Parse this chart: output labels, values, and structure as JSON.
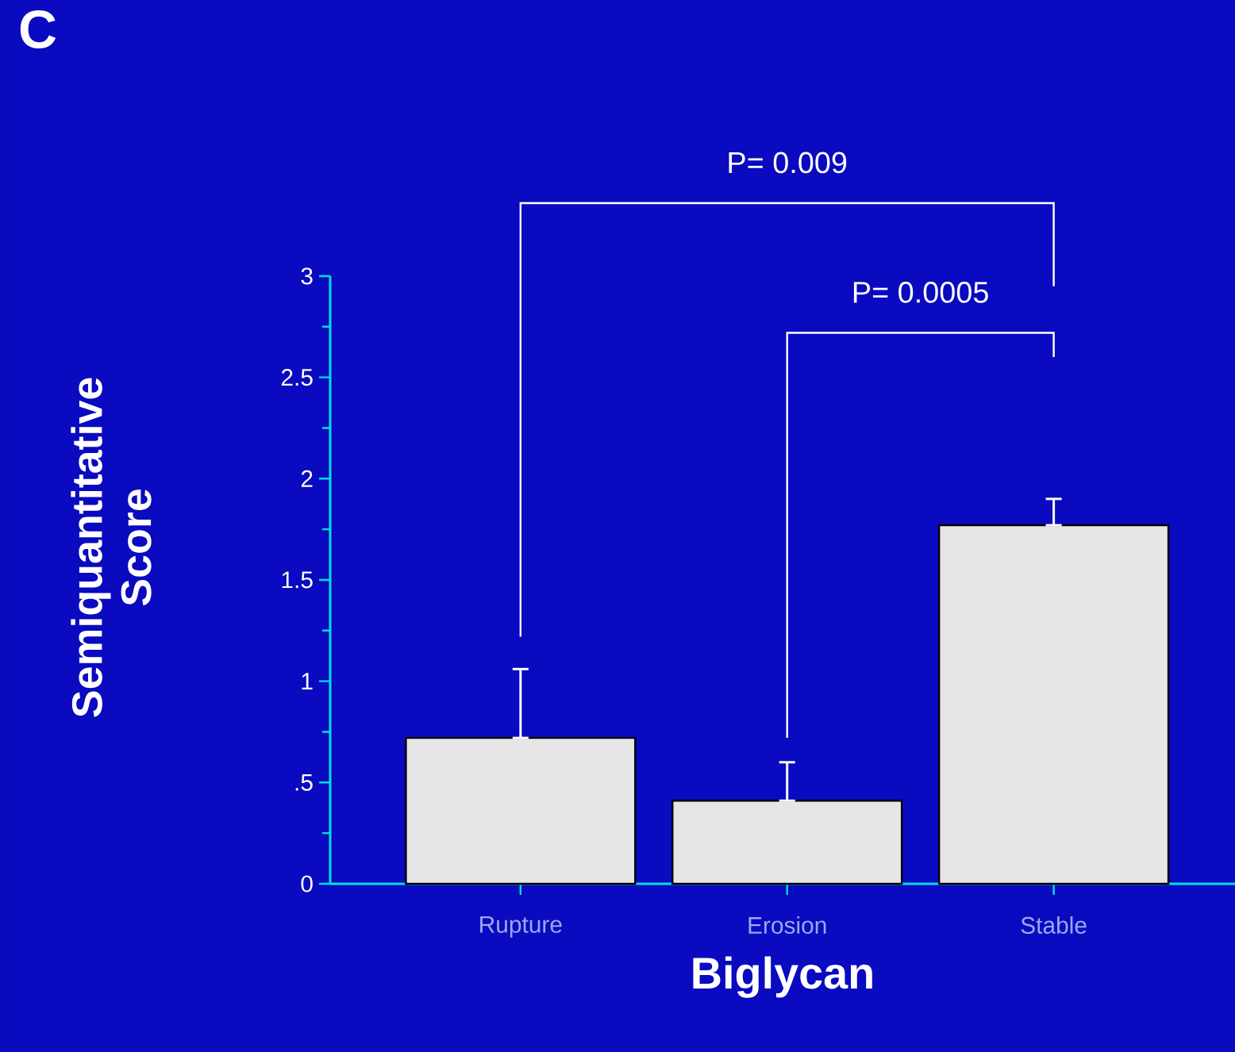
{
  "chart_data": {
    "type": "bar",
    "xlabel": "Biglycan",
    "ylabel": "Semiquantitative Score",
    "categories": [
      "Rupture",
      "Erosion",
      "Stable"
    ],
    "values": [
      0.72,
      0.41,
      1.77
    ],
    "errors": [
      [
        0.72,
        1.06
      ],
      [
        0.41,
        0.6
      ],
      [
        1.77,
        1.9
      ]
    ],
    "color": "#e6e6e6",
    "ylim": [
      0,
      3
    ],
    "yticks": [
      0,
      {
        "value": 0.5,
        "label": ".5"
      },
      1,
      1.5,
      2,
      2.5,
      3
    ],
    "annotations": [
      "C",
      "P= 0.009",
      "P= 0.0005"
    ]
  }
}
